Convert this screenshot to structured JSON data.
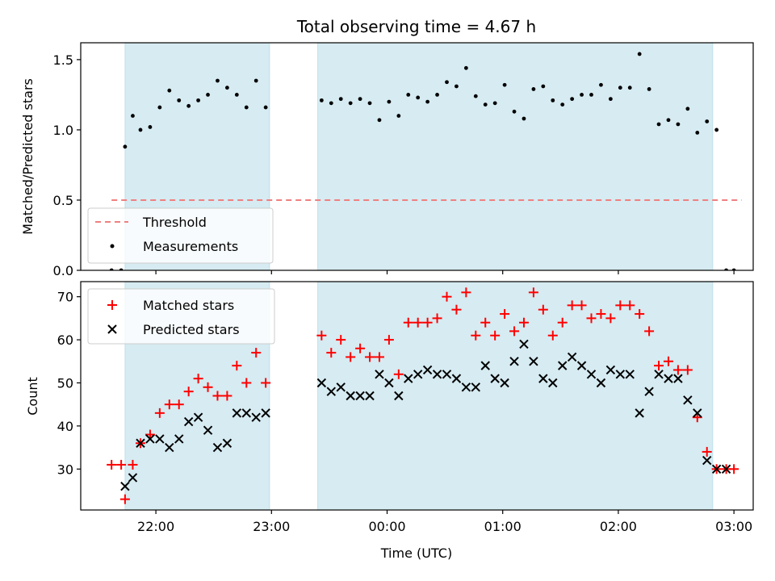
{
  "figure_title": "Total observing time = 4.67 h",
  "chart_data": [
    {
      "type": "scatter",
      "xlabel": "",
      "ylabel": "Matched/Predicted stars",
      "ylim": [
        0,
        1.62
      ],
      "yticks": [
        0.0,
        0.5,
        1.0,
        1.5
      ],
      "ytick_labels": [
        "0.0",
        "0.5",
        "1.0",
        "1.5"
      ],
      "xlim": [
        "21:21",
        "03:10"
      ],
      "legend_position": "lower-left",
      "shaded_intervals_utc": [
        [
          "21:44",
          "22:59"
        ],
        [
          "23:24",
          "02:49"
        ]
      ],
      "shade_color": "#add8e6",
      "threshold": {
        "name": "Threshold",
        "value": 0.5,
        "x_range": [
          "21:37",
          "03:04"
        ],
        "color": "#f08080"
      },
      "series": [
        {
          "name": "Measurements",
          "color": "#000000",
          "x": [
            "21:37",
            "21:42",
            "21:44",
            "21:48",
            "21:52",
            "21:57",
            "22:02",
            "22:07",
            "22:12",
            "22:17",
            "22:22",
            "22:27",
            "22:32",
            "22:37",
            "22:42",
            "22:47",
            "22:52",
            "22:57",
            "23:26",
            "23:31",
            "23:36",
            "23:41",
            "23:46",
            "23:51",
            "23:56",
            "00:01",
            "00:06",
            "00:11",
            "00:16",
            "00:21",
            "00:26",
            "00:31",
            "00:36",
            "00:41",
            "00:46",
            "00:51",
            "00:56",
            "01:01",
            "01:06",
            "01:11",
            "01:16",
            "01:21",
            "01:26",
            "01:31",
            "01:36",
            "01:41",
            "01:46",
            "01:51",
            "01:56",
            "02:01",
            "02:06",
            "02:11",
            "02:16",
            "02:21",
            "02:26",
            "02:31",
            "02:36",
            "02:41",
            "02:46",
            "02:51",
            "02:56",
            "03:00"
          ],
          "values": [
            0,
            0,
            0.88,
            1.1,
            1.0,
            1.02,
            1.16,
            1.28,
            1.21,
            1.17,
            1.21,
            1.25,
            1.35,
            1.3,
            1.25,
            1.16,
            1.35,
            1.16,
            1.21,
            1.19,
            1.22,
            1.19,
            1.22,
            1.19,
            1.07,
            1.2,
            1.1,
            1.25,
            1.23,
            1.2,
            1.25,
            1.34,
            1.31,
            1.44,
            1.24,
            1.18,
            1.19,
            1.32,
            1.13,
            1.08,
            1.29,
            1.31,
            1.21,
            1.18,
            1.22,
            1.25,
            1.25,
            1.32,
            1.22,
            1.3,
            1.3,
            1.54,
            1.29,
            1.04,
            1.07,
            1.04,
            1.15,
            0.98,
            1.06,
            1.0,
            0,
            0
          ]
        }
      ]
    },
    {
      "type": "scatter",
      "xlabel": "Time (UTC)",
      "ylabel": "Count",
      "ylim": [
        20.5,
        73.5
      ],
      "yticks": [
        30,
        40,
        50,
        60,
        70
      ],
      "ytick_labels": [
        "30",
        "40",
        "50",
        "60",
        "70"
      ],
      "xlim": [
        "21:21",
        "03:10"
      ],
      "xticks": [
        "22:00",
        "23:00",
        "00:00",
        "01:00",
        "02:00",
        "03:00"
      ],
      "legend_position": "top-left",
      "shaded_intervals_utc": [
        [
          "21:44",
          "22:59"
        ],
        [
          "23:24",
          "02:49"
        ]
      ],
      "shade_color": "#add8e6",
      "series": [
        {
          "name": "Matched stars",
          "color": "#ff0000",
          "marker": "plus",
          "x": [
            "21:37",
            "21:42",
            "21:44",
            "21:48",
            "21:52",
            "21:57",
            "22:02",
            "22:07",
            "22:12",
            "22:17",
            "22:22",
            "22:27",
            "22:32",
            "22:37",
            "22:42",
            "22:47",
            "22:52",
            "22:57",
            "23:26",
            "23:31",
            "23:36",
            "23:41",
            "23:46",
            "23:51",
            "23:56",
            "00:01",
            "00:06",
            "00:11",
            "00:16",
            "00:21",
            "00:26",
            "00:31",
            "00:36",
            "00:41",
            "00:46",
            "00:51",
            "00:56",
            "01:01",
            "01:06",
            "01:11",
            "01:16",
            "01:21",
            "01:26",
            "01:31",
            "01:36",
            "01:41",
            "01:46",
            "01:51",
            "01:56",
            "02:01",
            "02:06",
            "02:11",
            "02:16",
            "02:21",
            "02:26",
            "02:31",
            "02:36",
            "02:41",
            "02:46",
            "02:51",
            "02:56",
            "03:00"
          ],
          "values": [
            31,
            31,
            23,
            31,
            36,
            38,
            43,
            45,
            45,
            48,
            51,
            49,
            47,
            47,
            54,
            50,
            57,
            50,
            61,
            57,
            60,
            56,
            58,
            56,
            56,
            60,
            52,
            64,
            64,
            64,
            65,
            70,
            67,
            71,
            61,
            64,
            61,
            66,
            62,
            64,
            71,
            67,
            61,
            64,
            68,
            68,
            65,
            66,
            65,
            68,
            68,
            66,
            62,
            54,
            55,
            53,
            53,
            42,
            34,
            30,
            30,
            30
          ]
        },
        {
          "name": "Predicted stars",
          "color": "#000000",
          "marker": "x",
          "x": [
            "21:44",
            "21:48",
            "21:52",
            "21:57",
            "22:02",
            "22:07",
            "22:12",
            "22:17",
            "22:22",
            "22:27",
            "22:32",
            "22:37",
            "22:42",
            "22:47",
            "22:52",
            "22:57",
            "23:26",
            "23:31",
            "23:36",
            "23:41",
            "23:46",
            "23:51",
            "23:56",
            "00:01",
            "00:06",
            "00:11",
            "00:16",
            "00:21",
            "00:26",
            "00:31",
            "00:36",
            "00:41",
            "00:46",
            "00:51",
            "00:56",
            "01:01",
            "01:06",
            "01:11",
            "01:16",
            "01:21",
            "01:26",
            "01:31",
            "01:36",
            "01:41",
            "01:46",
            "01:51",
            "01:56",
            "02:01",
            "02:06",
            "02:11",
            "02:16",
            "02:21",
            "02:26",
            "02:31",
            "02:36",
            "02:41",
            "02:46",
            "02:51",
            "02:56"
          ],
          "values": [
            26,
            28,
            36,
            37,
            37,
            35,
            37,
            41,
            42,
            39,
            35,
            36,
            43,
            43,
            42,
            43,
            50,
            48,
            49,
            47,
            47,
            47,
            52,
            50,
            47,
            51,
            52,
            53,
            52,
            52,
            51,
            49,
            49,
            54,
            51,
            50,
            55,
            59,
            55,
            51,
            50,
            54,
            56,
            54,
            52,
            50,
            53,
            52,
            52,
            43,
            48,
            52,
            51,
            51,
            46,
            43,
            32,
            30,
            30
          ]
        }
      ]
    }
  ]
}
